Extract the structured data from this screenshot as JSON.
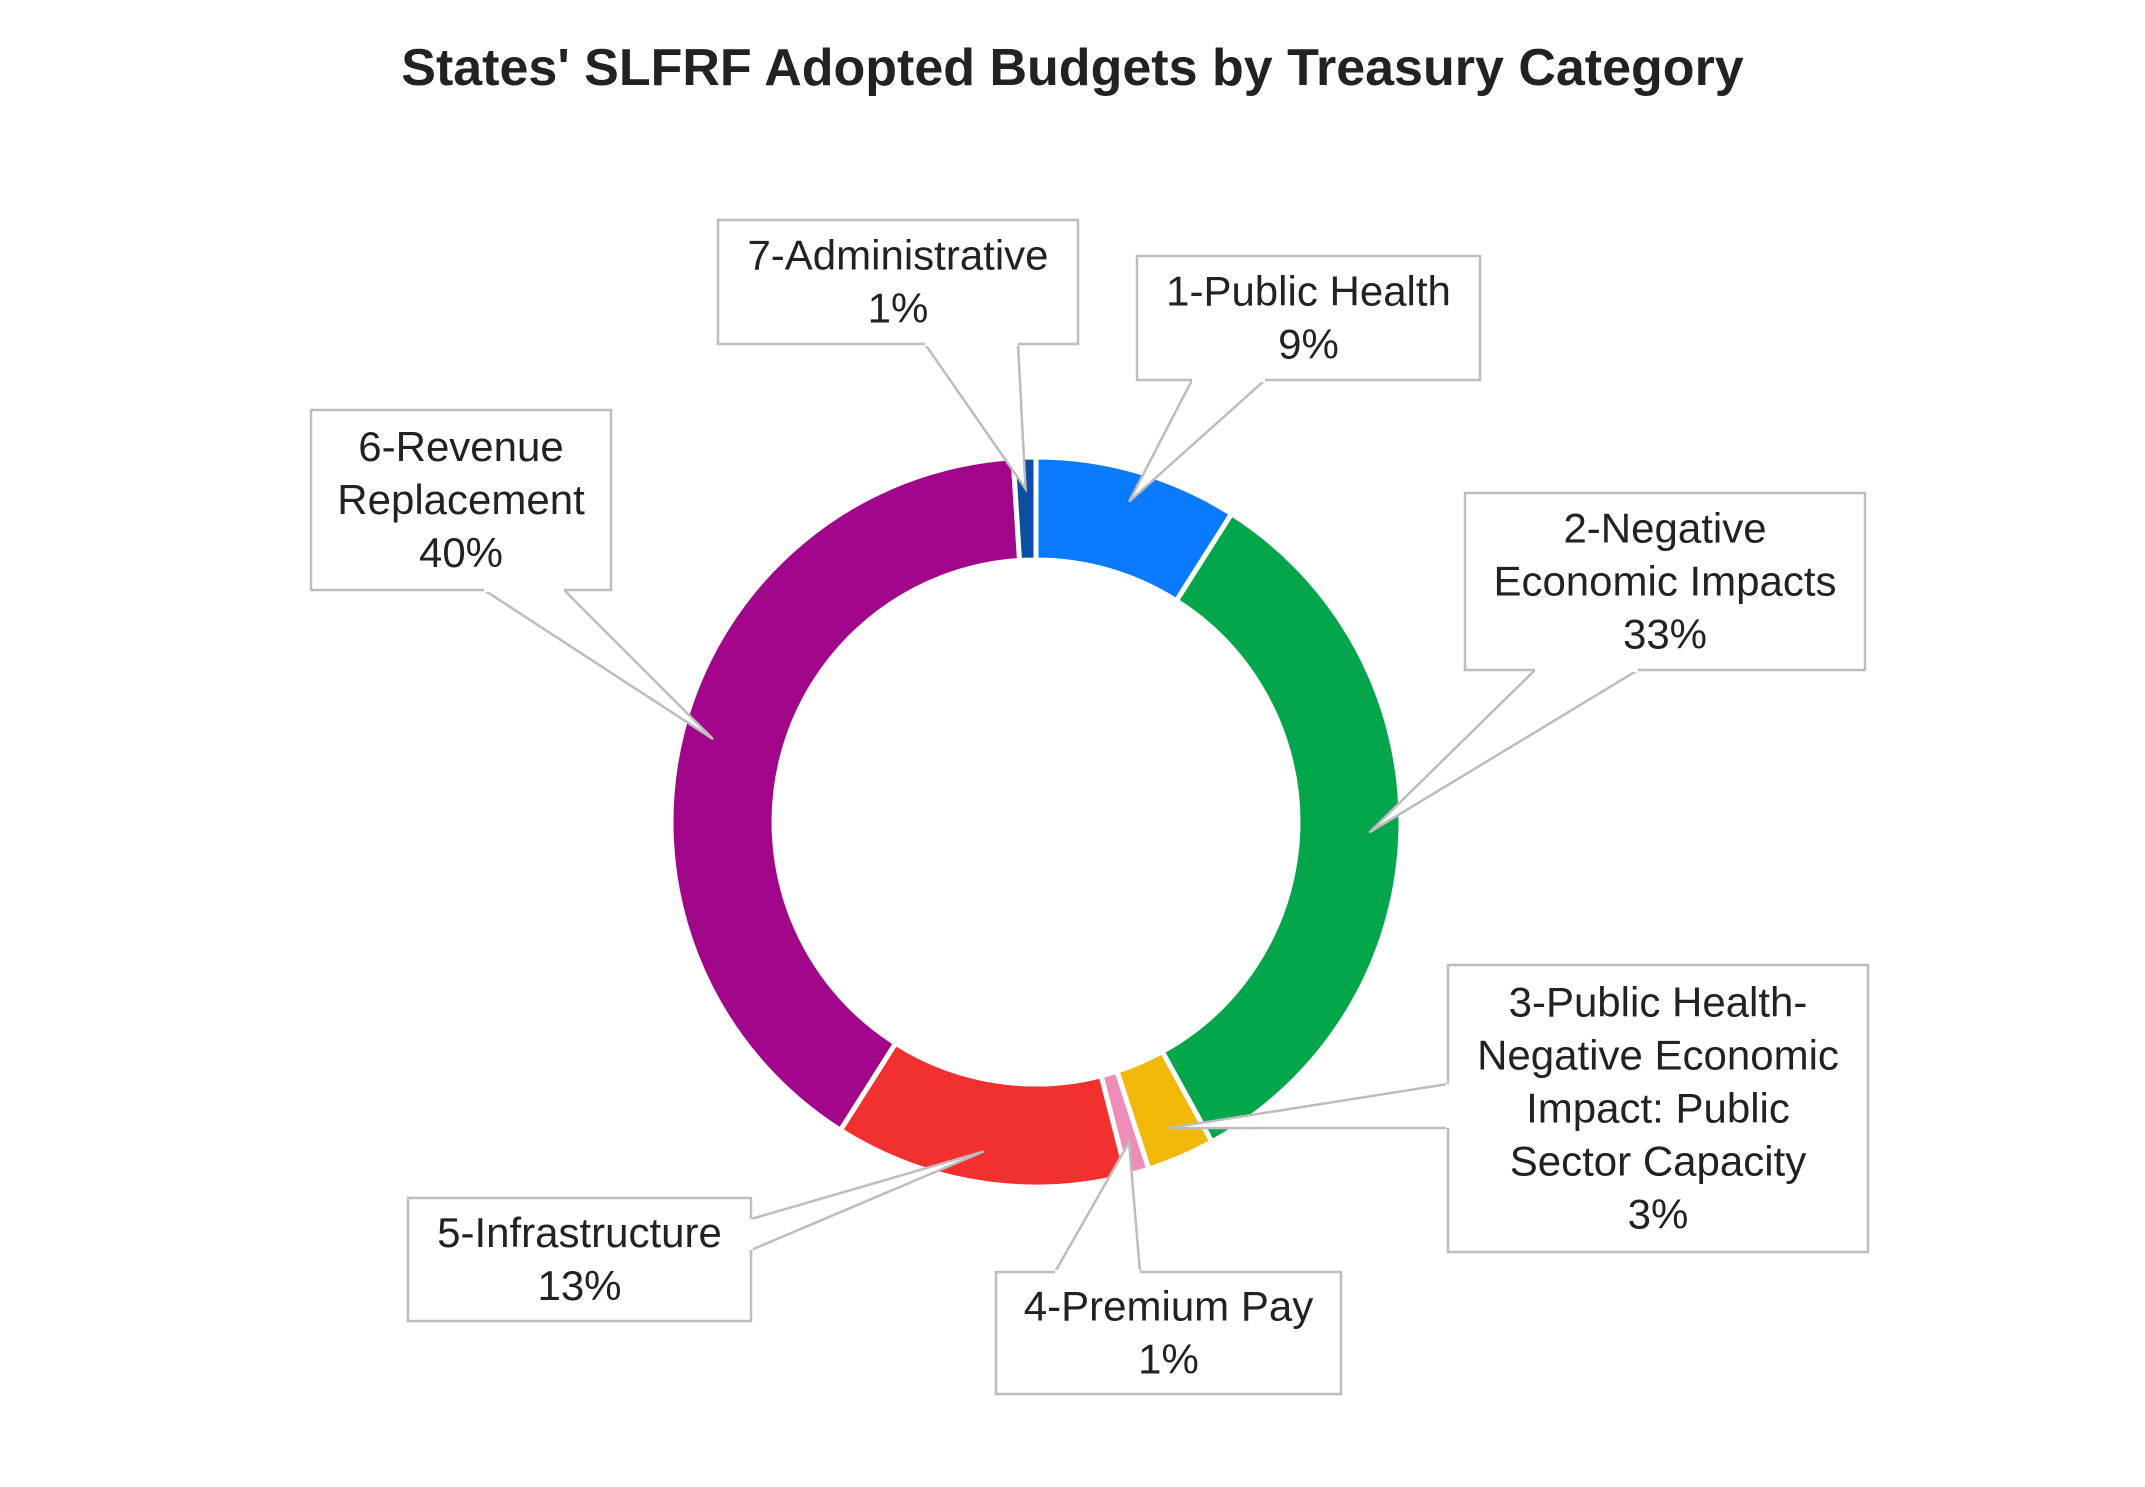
{
  "chart_data": {
    "type": "pie",
    "style": "donut",
    "title": "States' SLFRF Adopted Budgets by Treasury Category",
    "slices": [
      {
        "category": "1-Public Health",
        "label_lines": [
          "1-Public Health",
          "9%"
        ],
        "value": 9,
        "color": "#0a7bff"
      },
      {
        "category": "2-Negative Economic Impacts",
        "label_lines": [
          "2-Negative",
          "Economic Impacts",
          "33%"
        ],
        "value": 33,
        "color": "#04a64c"
      },
      {
        "category": "3-Public Health-Negative Economic Impact: Public Sector Capacity",
        "label_lines": [
          "3-Public Health-",
          "Negative Economic",
          "Impact: Public",
          "Sector Capacity",
          "3%"
        ],
        "value": 3,
        "color": "#f2b808"
      },
      {
        "category": "4-Premium Pay",
        "label_lines": [
          "4-Premium Pay",
          "1%"
        ],
        "value": 1,
        "color": "#f08cb8"
      },
      {
        "category": "5-Infrastructure",
        "label_lines": [
          "5-Infrastructure",
          "13%"
        ],
        "value": 13,
        "color": "#f23030"
      },
      {
        "category": "6-Revenue Replacement",
        "label_lines": [
          "6-Revenue",
          "Replacement",
          "40%"
        ],
        "value": 40,
        "color": "#a0058a"
      },
      {
        "category": "7-Administrative",
        "label_lines": [
          "7-Administrative",
          "1%"
        ],
        "value": 1,
        "color": "#0b4fa2"
      }
    ],
    "legend": "callout labels"
  }
}
